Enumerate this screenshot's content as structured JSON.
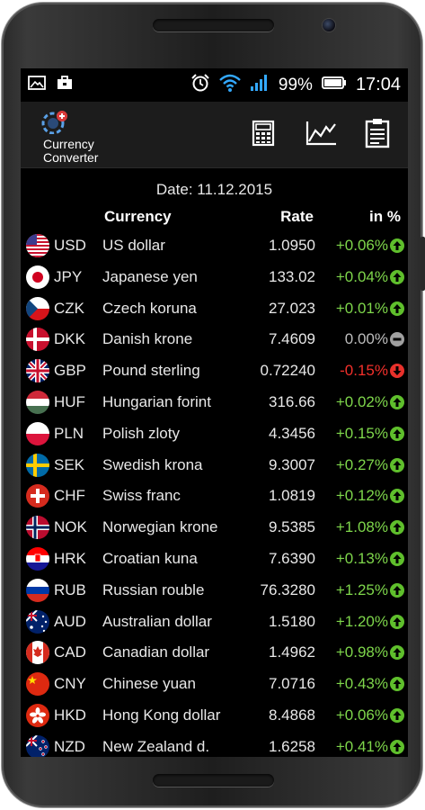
{
  "status_bar": {
    "battery": "99%",
    "time": "17:04",
    "icons": [
      "gallery-icon",
      "briefcase-icon",
      "alarm-icon",
      "wifi-icon",
      "signal-icon",
      "battery-icon"
    ]
  },
  "app_bar": {
    "title_line1": "Currency",
    "title_line2": "Converter",
    "actions": [
      "calculator-icon",
      "chart-icon",
      "clipboard-icon"
    ]
  },
  "date": "Date: 11.12.2015",
  "table": {
    "headers": {
      "currency": "Currency",
      "rate": "Rate",
      "change": "in %"
    },
    "rows": [
      {
        "code": "USD",
        "name": "US dollar",
        "rate": "1.0950",
        "change": "+0.06%",
        "trend": "up",
        "flag": "us"
      },
      {
        "code": "JPY",
        "name": "Japanese yen",
        "rate": "133.02",
        "change": "+0.04%",
        "trend": "up",
        "flag": "jp"
      },
      {
        "code": "CZK",
        "name": "Czech koruna",
        "rate": "27.023",
        "change": "+0.01%",
        "trend": "up",
        "flag": "cz"
      },
      {
        "code": "DKK",
        "name": "Danish krone",
        "rate": "7.4609",
        "change": "0.00%",
        "trend": "flat",
        "flag": "dk"
      },
      {
        "code": "GBP",
        "name": "Pound sterling",
        "rate": "0.72240",
        "change": "-0.15%",
        "trend": "down",
        "flag": "gb"
      },
      {
        "code": "HUF",
        "name": "Hungarian forint",
        "rate": "316.66",
        "change": "+0.02%",
        "trend": "up",
        "flag": "hu"
      },
      {
        "code": "PLN",
        "name": "Polish zloty",
        "rate": "4.3456",
        "change": "+0.15%",
        "trend": "up",
        "flag": "pl"
      },
      {
        "code": "SEK",
        "name": "Swedish krona",
        "rate": "9.3007",
        "change": "+0.27%",
        "trend": "up",
        "flag": "se"
      },
      {
        "code": "CHF",
        "name": "Swiss franc",
        "rate": "1.0819",
        "change": "+0.12%",
        "trend": "up",
        "flag": "ch"
      },
      {
        "code": "NOK",
        "name": "Norwegian krone",
        "rate": "9.5385",
        "change": "+1.08%",
        "trend": "up",
        "flag": "no"
      },
      {
        "code": "HRK",
        "name": "Croatian kuna",
        "rate": "7.6390",
        "change": "+0.13%",
        "trend": "up",
        "flag": "hr"
      },
      {
        "code": "RUB",
        "name": "Russian rouble",
        "rate": "76.3280",
        "change": "+1.25%",
        "trend": "up",
        "flag": "ru"
      },
      {
        "code": "AUD",
        "name": "Australian dollar",
        "rate": "1.5180",
        "change": "+1.20%",
        "trend": "up",
        "flag": "au"
      },
      {
        "code": "CAD",
        "name": "Canadian dollar",
        "rate": "1.4962",
        "change": "+0.98%",
        "trend": "up",
        "flag": "ca"
      },
      {
        "code": "CNY",
        "name": "Chinese yuan",
        "rate": "7.0716",
        "change": "+0.43%",
        "trend": "up",
        "flag": "cn"
      },
      {
        "code": "HKD",
        "name": "Hong Kong dollar",
        "rate": "8.4868",
        "change": "+0.06%",
        "trend": "up",
        "flag": "hk"
      },
      {
        "code": "NZD",
        "name": "New Zealand d.",
        "rate": "1.6258",
        "change": "+0.41%",
        "trend": "up",
        "flag": "nz"
      }
    ]
  },
  "colors": {
    "up": "#7ed64b",
    "down": "#f2302b",
    "flat": "#bdbdbd",
    "actionbar": "#1c1c1c"
  }
}
